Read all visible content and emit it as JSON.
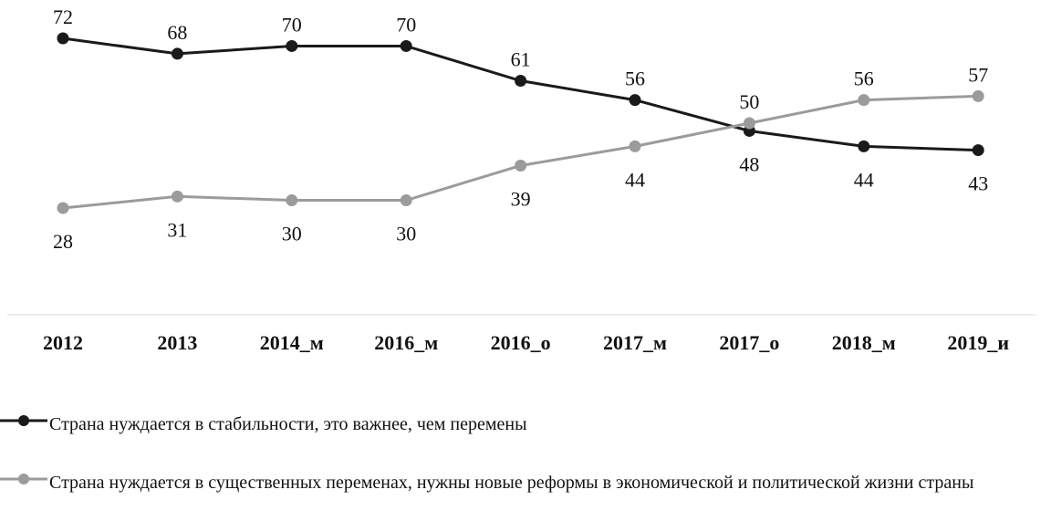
{
  "chart_data": {
    "type": "line",
    "categories": [
      "2012",
      "2013",
      "2014_м",
      "2016_м",
      "2016_о",
      "2017_м",
      "2017_о",
      "2018_м",
      "2019_и"
    ],
    "series": [
      {
        "name": "Страна нуждается в стабильности, это важнее, чем перемены",
        "values": [
          72,
          68,
          70,
          70,
          61,
          56,
          48,
          44,
          43
        ],
        "color": "#1a1a1a",
        "label_position": "above-then-below"
      },
      {
        "name": "Страна нуждается в существенных переменах, нужны новые реформы в экономической и политической жизни страны",
        "values": [
          28,
          31,
          30,
          30,
          39,
          44,
          50,
          56,
          57
        ],
        "color": "#9b9b9b",
        "label_position": "below-then-above"
      }
    ],
    "title": "",
    "xlabel": "",
    "ylabel": "",
    "ylim": [
      0,
      75
    ],
    "grid": false,
    "legend": "bottom"
  }
}
